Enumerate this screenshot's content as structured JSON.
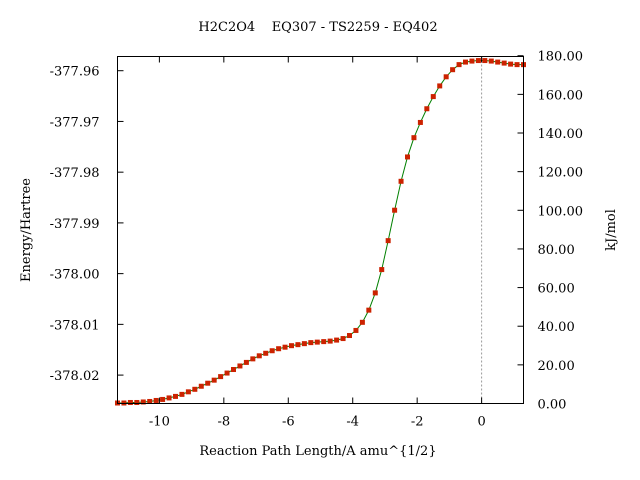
{
  "chart_data": {
    "type": "line",
    "title": "H2C2O4    EQ307 - TS2259 - EQ402",
    "xlabel": "Reaction Path Length/A amu^{1/2}",
    "ylabel": "Energy/Hartree",
    "y2label": "kJ/mol",
    "xlim": [
      -11.3,
      1.3
    ],
    "ylim": [
      -378.0256,
      -377.9572
    ],
    "y2lim": [
      0,
      179.6
    ],
    "x_ticks": [
      -10,
      -8,
      -6,
      -4,
      -2,
      0
    ],
    "x_tick_labels": [
      "-10",
      "-8",
      "-6",
      "-4",
      "-2",
      "0"
    ],
    "y_ticks": [
      -377.96,
      -377.97,
      -377.98,
      -377.99,
      -378.0,
      -378.01,
      -378.02
    ],
    "y_tick_labels": [
      "-377.96",
      "-377.97",
      "-377.98",
      "-377.99",
      "-378.00",
      "-378.01",
      "-378.02"
    ],
    "y2_ticks": [
      180,
      160,
      140,
      120,
      100,
      80,
      60,
      40,
      20,
      0
    ],
    "y2_tick_labels": [
      "180.00",
      "160.00",
      "140.00",
      "120.00",
      "100.00",
      "80.00",
      "60.00",
      "40.00",
      "20.00",
      "0.00"
    ],
    "ts_marker_x": 0,
    "grid": false,
    "colors": {
      "line": "#008000",
      "marker": "#cc2200",
      "ts_line": "#999999"
    },
    "series": [
      {
        "x": [
          -11.3,
          -11.1,
          -10.9,
          -10.7,
          -10.5,
          -10.3,
          -10.1,
          -9.9,
          -9.7,
          -9.5,
          -9.3,
          -9.1,
          -8.9,
          -8.7,
          -8.5,
          -8.3,
          -8.1,
          -7.9,
          -7.7,
          -7.5,
          -7.3,
          -7.1,
          -6.9,
          -6.7,
          -6.5,
          -6.3,
          -6.1,
          -5.9,
          -5.7,
          -5.5,
          -5.3,
          -5.1,
          -4.9,
          -4.7,
          -4.5,
          -4.3,
          -4.1,
          -3.9,
          -3.7,
          -3.5,
          -3.3,
          -3.1,
          -2.9,
          -2.7,
          -2.5,
          -2.3,
          -2.1,
          -1.9,
          -1.7,
          -1.5,
          -1.3,
          -1.1,
          -0.9,
          -0.7,
          -0.5,
          -0.3,
          -0.1,
          0.1,
          0.3,
          0.5,
          0.7,
          0.9,
          1.1,
          1.3
        ],
        "y": [
          -378.0255,
          -378.0255,
          -378.0254,
          -378.0254,
          -378.0253,
          -378.0252,
          -378.025,
          -378.0248,
          -378.0245,
          -378.0242,
          -378.0238,
          -378.0233,
          -378.0228,
          -378.0222,
          -378.0216,
          -378.021,
          -378.0203,
          -378.0196,
          -378.0189,
          -378.0182,
          -378.0175,
          -378.0168,
          -378.0162,
          -378.0157,
          -378.0152,
          -378.0148,
          -378.0145,
          -378.0142,
          -378.014,
          -378.0138,
          -378.0136,
          -378.0135,
          -378.0134,
          -378.0133,
          -378.0131,
          -378.0128,
          -378.0122,
          -378.0112,
          -378.0096,
          -378.0072,
          -378.0038,
          -377.9992,
          -377.9935,
          -377.9875,
          -377.9818,
          -377.977,
          -377.9732,
          -377.9702,
          -377.9675,
          -377.9651,
          -377.963,
          -377.9612,
          -377.9598,
          -377.9588,
          -377.9583,
          -377.9581,
          -377.958,
          -377.958,
          -377.9581,
          -377.9583,
          -377.9585,
          -377.9587,
          -377.9588,
          -377.9588
        ]
      }
    ]
  }
}
